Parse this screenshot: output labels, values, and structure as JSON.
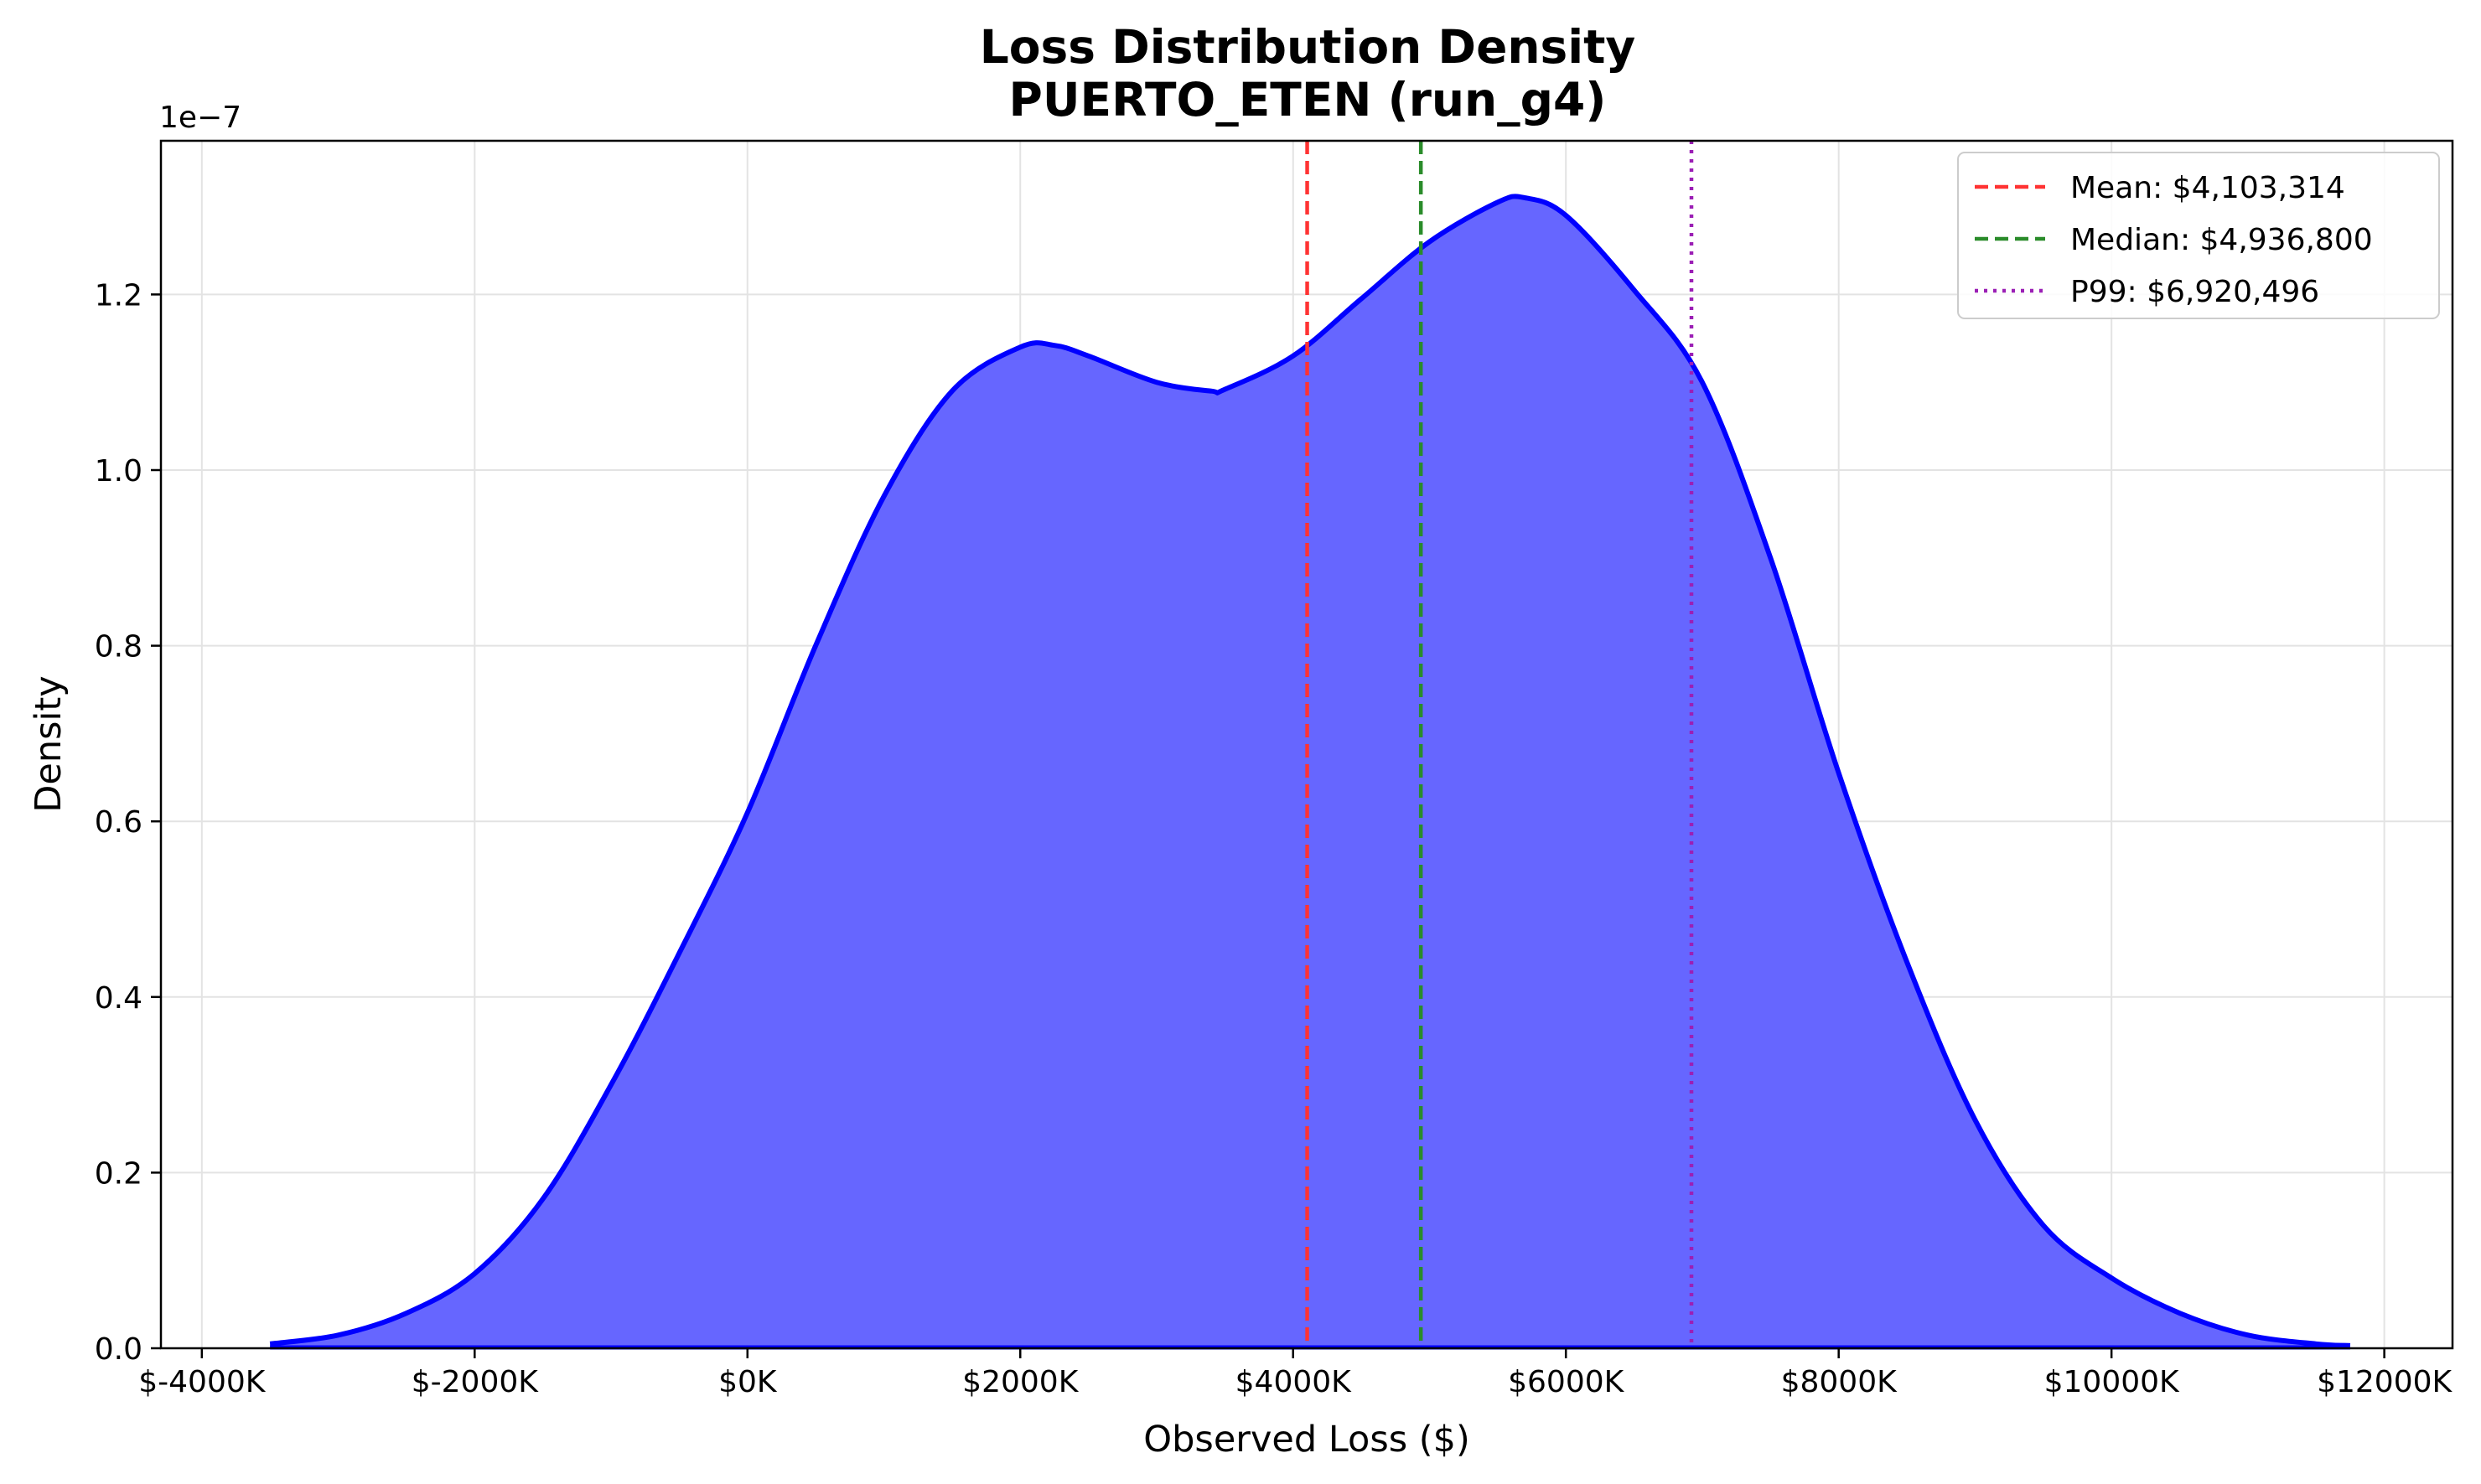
{
  "chart_data": {
    "type": "area",
    "title": "Loss Distribution Density",
    "subtitle": "PUERTO_ETEN (run_g4)",
    "xlabel": "Observed Loss ($)",
    "ylabel": "Density",
    "y_offset_label": "1e−7",
    "xlim": [
      -4300000,
      12500000
    ],
    "ylim": [
      0,
      1.375e-07
    ],
    "x_ticks": [
      -4000000,
      -2000000,
      0,
      2000000,
      4000000,
      6000000,
      8000000,
      10000000,
      12000000
    ],
    "x_tick_labels": [
      "$-4000K",
      "$-2000K",
      "$0K",
      "$2000K",
      "$4000K",
      "$6000K",
      "$8000K",
      "$10000K",
      "$12000K"
    ],
    "y_ticks": [
      0,
      2e-08,
      4e-08,
      6e-08,
      8e-08,
      1e-07,
      1.2e-07
    ],
    "y_tick_labels": [
      "0.0",
      "0.2",
      "0.4",
      "0.6",
      "0.8",
      "1.0",
      "1.2"
    ],
    "grid": true,
    "legend_position": "top-right",
    "series": [
      {
        "color": "#0000ff",
        "fill": "#6666ff",
        "x": [
          -3500000,
          -3000000,
          -2500000,
          -2000000,
          -1500000,
          -1000000,
          -500000,
          0,
          500000,
          1000000,
          1500000,
          2000000,
          2250000,
          2500000,
          3000000,
          3400000,
          3500000,
          4000000,
          4500000,
          5000000,
          5500000,
          5700000,
          6000000,
          6500000,
          7000000,
          7500000,
          8000000,
          8500000,
          9000000,
          9500000,
          10000000,
          10500000,
          11000000,
          11500000,
          11750000
        ],
        "y": [
          5e-10,
          1.5e-09,
          4e-09,
          8.5e-09,
          1.7e-08,
          3e-08,
          4.5e-08,
          6.1e-08,
          8e-08,
          9.7e-08,
          1.09e-07,
          1.14e-07,
          1.142e-07,
          1.13e-07,
          1.1e-07,
          1.09e-07,
          1.092e-07,
          1.13e-07,
          1.195e-07,
          1.26e-07,
          1.305e-07,
          1.31e-07,
          1.29e-07,
          1.205e-07,
          1.1e-07,
          9e-08,
          6.55e-08,
          4.4e-08,
          2.6e-08,
          1.4e-08,
          8e-09,
          4e-09,
          1.5e-09,
          5e-10,
          3e-10
        ]
      }
    ],
    "reference_lines": [
      {
        "label": "Mean: $4,103,314",
        "x": 4103314,
        "color": "#ff3333",
        "style": "dashed"
      },
      {
        "label": "Median: $4,936,800",
        "x": 4936800,
        "color": "#2a8c2a",
        "style": "dashed"
      },
      {
        "label": "P99: $6,920,496",
        "x": 6920496,
        "color": "#9b1fb5",
        "style": "dotted"
      }
    ]
  }
}
